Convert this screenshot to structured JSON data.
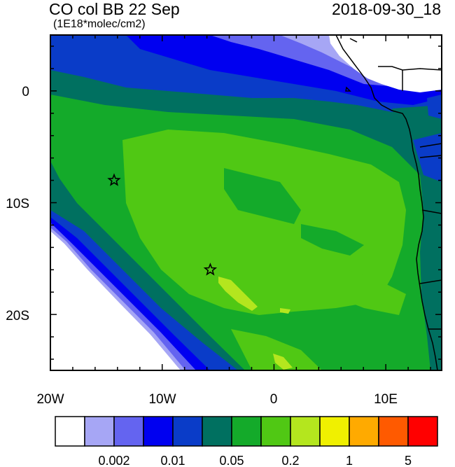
{
  "header": {
    "title": "CO col BB 22 Sep",
    "units": "(1E18*molec/cm2)",
    "datetime": "2018-09-30_18"
  },
  "axes": {
    "x_ticks": [
      {
        "lon": -20,
        "label": "20W"
      },
      {
        "lon": -10,
        "label": "10W"
      },
      {
        "lon": 0,
        "label": "0"
      },
      {
        "lon": 10,
        "label": "10E"
      }
    ],
    "y_ticks": [
      {
        "lat": 0,
        "label": "0"
      },
      {
        "lat": -10,
        "label": "10S"
      },
      {
        "lat": -20,
        "label": "20S"
      }
    ],
    "lon_range": [
      -20,
      15
    ],
    "lat_range": [
      -25,
      5
    ]
  },
  "colorbar": {
    "colors": [
      "#ffffff",
      "#a6a6f5",
      "#6464f0",
      "#0000f0",
      "#0a3cc8",
      "#007060",
      "#14aa2a",
      "#50c814",
      "#b4e61e",
      "#f0f000",
      "#ffaa00",
      "#ff5a00",
      "#ff0000"
    ],
    "labels": [
      {
        "after_box": 2,
        "text": "0.002"
      },
      {
        "after_box": 4,
        "text": "0.01"
      },
      {
        "after_box": 6,
        "text": "0.05"
      },
      {
        "after_box": 8,
        "text": "0.2"
      },
      {
        "after_box": 10,
        "text": "1"
      },
      {
        "after_box": 12,
        "text": "5"
      }
    ]
  },
  "markers": [
    {
      "name": "star-marker",
      "lon": -14.3,
      "lat": -8.0
    },
    {
      "name": "star-marker",
      "lon": -5.7,
      "lat": -16.0
    }
  ]
}
